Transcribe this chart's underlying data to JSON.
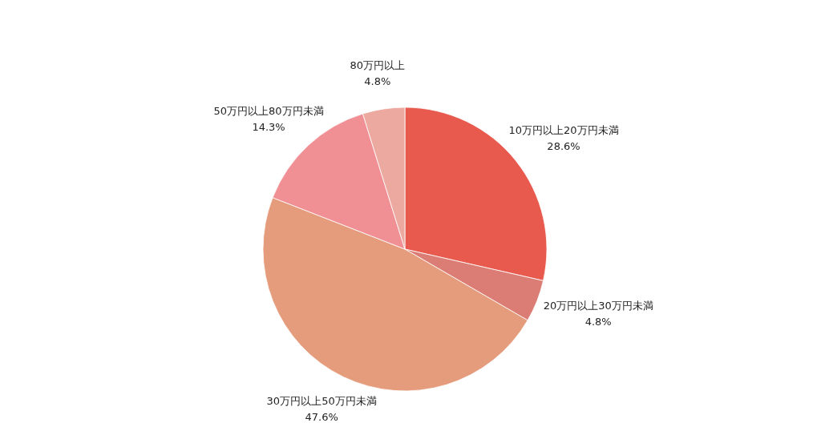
{
  "chart_data": {
    "type": "pie",
    "categories": [
      "10万円以上20万円未満",
      "20万円以上30万円未満",
      "30万円以上50万円未満",
      "50万円以上80万円未満",
      "80万円以上"
    ],
    "values": [
      28.6,
      4.8,
      47.6,
      14.3,
      4.8
    ],
    "value_labels": [
      "28.6%",
      "4.8%",
      "47.6%",
      "14.3%",
      "4.8%"
    ],
    "colors": [
      "#e85a4e",
      "#db7d74",
      "#e59c7c",
      "#f09095",
      "#eca99f"
    ]
  }
}
